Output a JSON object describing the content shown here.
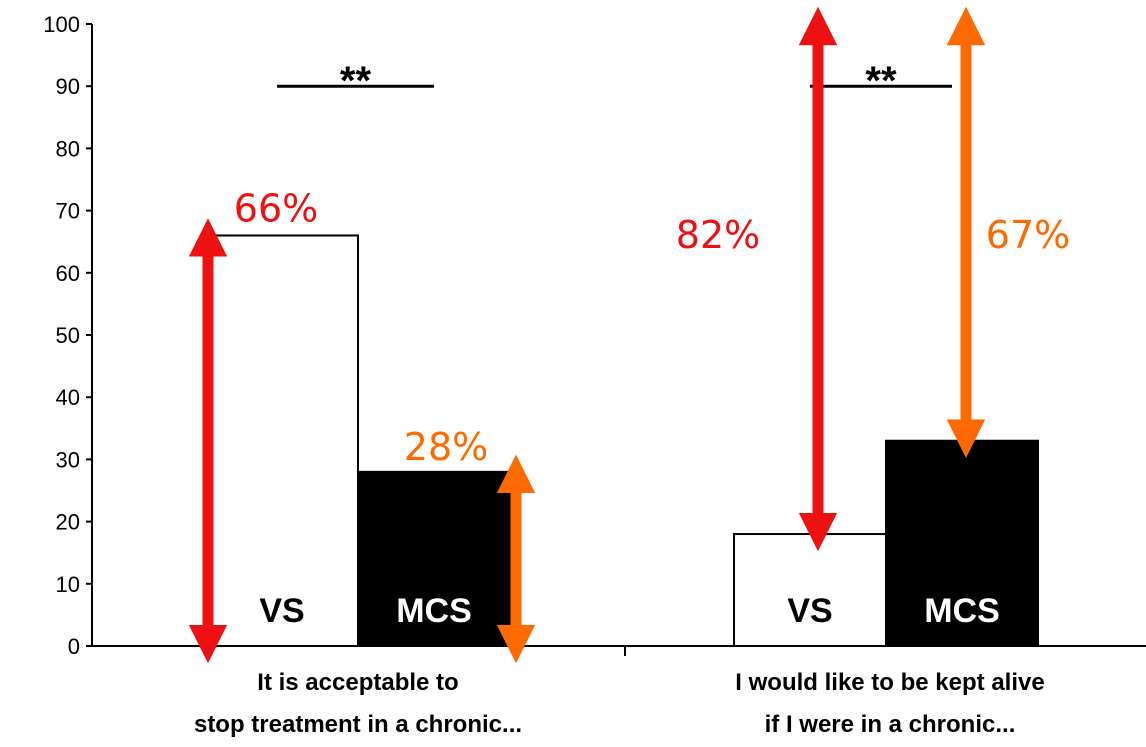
{
  "chart_data": {
    "type": "bar",
    "categories": [
      [
        "It is acceptable to",
        "stop treatment in a chronic..."
      ],
      [
        "I would like to be kept alive",
        "if I were in a chronic..."
      ]
    ],
    "series": [
      {
        "name": "VS",
        "values": [
          66,
          18
        ],
        "fill": "#ffffff"
      },
      {
        "name": "MCS",
        "values": [
          28,
          33
        ],
        "fill": "#000000"
      }
    ],
    "ylim": [
      0,
      100
    ],
    "yticks": [
      "0",
      "10",
      "20",
      "30",
      "40",
      "50",
      "60",
      "70",
      "80",
      "90",
      "100"
    ],
    "grid": false,
    "significance": [
      "**",
      "**"
    ],
    "annotations": [
      {
        "text": "66%",
        "color": "#ee1111",
        "series": "VS",
        "category": 0,
        "arrow_from": 0,
        "arrow_to": 66
      },
      {
        "text": "28%",
        "color": "#ff6a00",
        "series": "MCS",
        "category": 0,
        "arrow_from": 0,
        "arrow_to": 28
      },
      {
        "text": "82%",
        "color": "#ee1111",
        "series": "VS",
        "category": 1,
        "arrow_from": 18,
        "arrow_to": 100
      },
      {
        "text": "67%",
        "color": "#ff6a00",
        "series": "MCS",
        "category": 1,
        "arrow_from": 33,
        "arrow_to": 100
      }
    ]
  }
}
